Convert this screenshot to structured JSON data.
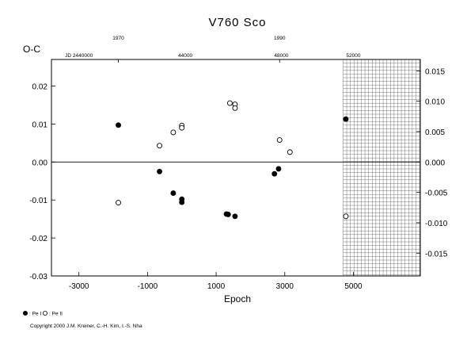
{
  "chart_data": {
    "type": "scatter",
    "title": "V760  Sco",
    "xlabel": "Epoch",
    "ylabel": "O-C",
    "xlim": [
      -3800,
      6950
    ],
    "ylim": [
      -0.03,
      0.027
    ],
    "x_ticks": [
      -3000,
      -1000,
      1000,
      3000,
      5000
    ],
    "x_tick_labels": [
      "-3000",
      "-1000",
      "1000",
      "3000",
      "5000"
    ],
    "y_ticks_left": [
      0.02,
      0.01,
      0.0,
      -0.01,
      -0.02,
      -0.03
    ],
    "y_tick_labels_left": [
      "0.02",
      "0.01",
      "0.00",
      "-0.01",
      "-0.02",
      "-0.03"
    ],
    "y_ticks_right": [
      0.015,
      0.01,
      0.005,
      0.0,
      -0.005,
      -0.01,
      -0.015
    ],
    "y_tick_labels_right": [
      "0.015",
      "0.010",
      "0.005",
      "0.000",
      "-0.005",
      "-0.010",
      "-0.015"
    ],
    "right_axis_scale": 1.6,
    "top_year_ticks": [
      {
        "x": -1850,
        "label": "1970"
      },
      {
        "x": 2850,
        "label": "1990"
      }
    ],
    "top_jd_ticks": [
      {
        "x": -3000,
        "label": "JD 2440000"
      },
      {
        "x": 100,
        "label": "44000"
      },
      {
        "x": 2900,
        "label": "48000"
      },
      {
        "x": 5000,
        "label": "52000"
      }
    ],
    "hatch_region_x": [
      4700,
      6950
    ],
    "zero_line": 0.0,
    "series": [
      {
        "name": "Pe I",
        "marker": "filled-circle",
        "points": [
          [
            -1850,
            0.0097
          ],
          [
            -650,
            -0.0025
          ],
          [
            -250,
            -0.0082
          ],
          [
            0,
            -0.0098
          ],
          [
            0,
            -0.0106
          ],
          [
            1300,
            -0.0137
          ],
          [
            1350,
            -0.0138
          ],
          [
            1550,
            -0.0143
          ],
          [
            2700,
            -0.0031
          ],
          [
            2820,
            -0.0018
          ],
          [
            4780,
            0.0113
          ]
        ]
      },
      {
        "name": "Pe II",
        "marker": "open-circle",
        "points": [
          [
            -1850,
            -0.0107
          ],
          [
            -650,
            0.0043
          ],
          [
            -250,
            0.0078
          ],
          [
            0,
            0.0096
          ],
          [
            0,
            0.009
          ],
          [
            1400,
            0.0155
          ],
          [
            1550,
            0.0152
          ],
          [
            1550,
            0.0142
          ],
          [
            2850,
            0.0058
          ],
          [
            3150,
            0.0026
          ],
          [
            4780,
            -0.0143
          ]
        ]
      }
    ],
    "legend": [
      {
        "marker": "filled-circle",
        "label": ": Pe I"
      },
      {
        "marker": "open-circle",
        "label": ": Pe II"
      }
    ],
    "copyright": "Copyright 2000 J.M. Kreiner, C.-H. Kim, I.-S. Nha"
  }
}
